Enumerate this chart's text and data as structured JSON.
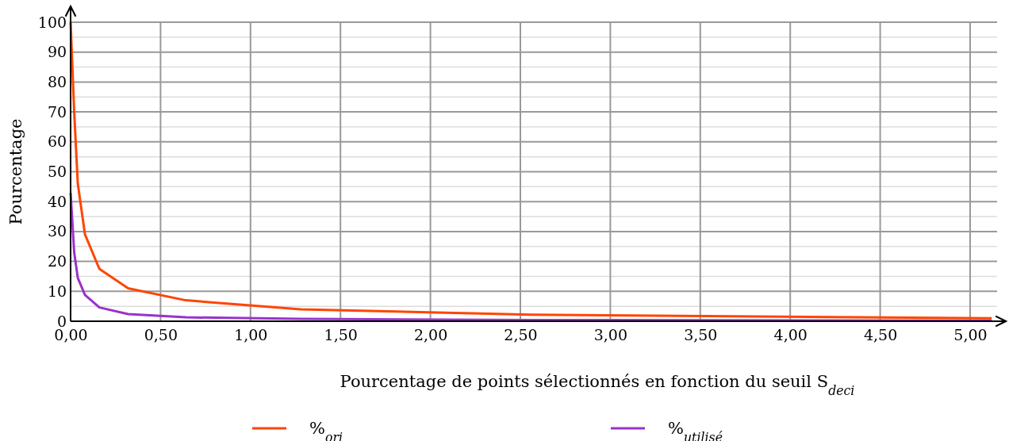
{
  "chart_data": {
    "type": "line",
    "xlabel": "Pourcentage de points sélectionnés en fonction du seuil S$_{deci}$",
    "ylabel": "Pourcentage",
    "xlim": [
      0,
      5.15
    ],
    "ylim": [
      0,
      100
    ],
    "xticks": [
      {
        "value": 0,
        "label": "0,00"
      },
      {
        "value": 0.5,
        "label": "0,50"
      },
      {
        "value": 1,
        "label": "1,00"
      },
      {
        "value": 1.5,
        "label": "1,50"
      },
      {
        "value": 2,
        "label": "2,00"
      },
      {
        "value": 2.5,
        "label": "2,50"
      },
      {
        "value": 3,
        "label": "3,00"
      },
      {
        "value": 3.5,
        "label": "3,50"
      },
      {
        "value": 4,
        "label": "4,00"
      },
      {
        "value": 4.5,
        "label": "4,50"
      },
      {
        "value": 5,
        "label": "5,00"
      }
    ],
    "yticks": [
      0,
      {
        "value": 5,
        "label": null
      },
      10,
      {
        "value": 15,
        "label": null
      },
      20,
      {
        "value": 25,
        "label": null
      },
      30,
      {
        "value": 35,
        "label": null
      },
      40,
      {
        "value": 45,
        "label": null
      },
      50,
      {
        "value": 55,
        "label": null
      },
      60,
      {
        "value": 65,
        "label": null
      },
      70,
      {
        "value": 75,
        "label": null
      },
      80,
      {
        "value": 85,
        "label": null
      },
      90,
      {
        "value": 95,
        "label": null
      },
      100
    ],
    "x": [
      0,
      0.02,
      0.04,
      0.08,
      0.16,
      0.32,
      0.64,
      1.28,
      2.56,
      5.12
    ],
    "series": [
      {
        "name": "%$_{ori}$",
        "color": "#ff4500",
        "values": [
          100,
          70,
          46,
          29,
          17.5,
          11,
          7,
          4,
          2.2,
          1
        ]
      },
      {
        "name": "%$_{utilisé}$",
        "color": "#9932cc",
        "values": [
          43,
          23,
          14.5,
          8.8,
          4.6,
          2.4,
          1.3,
          0.8,
          0.4,
          0.2
        ]
      }
    ],
    "grid": true,
    "legend": "bottom",
    "marker": "none",
    "line_style": "solid"
  }
}
